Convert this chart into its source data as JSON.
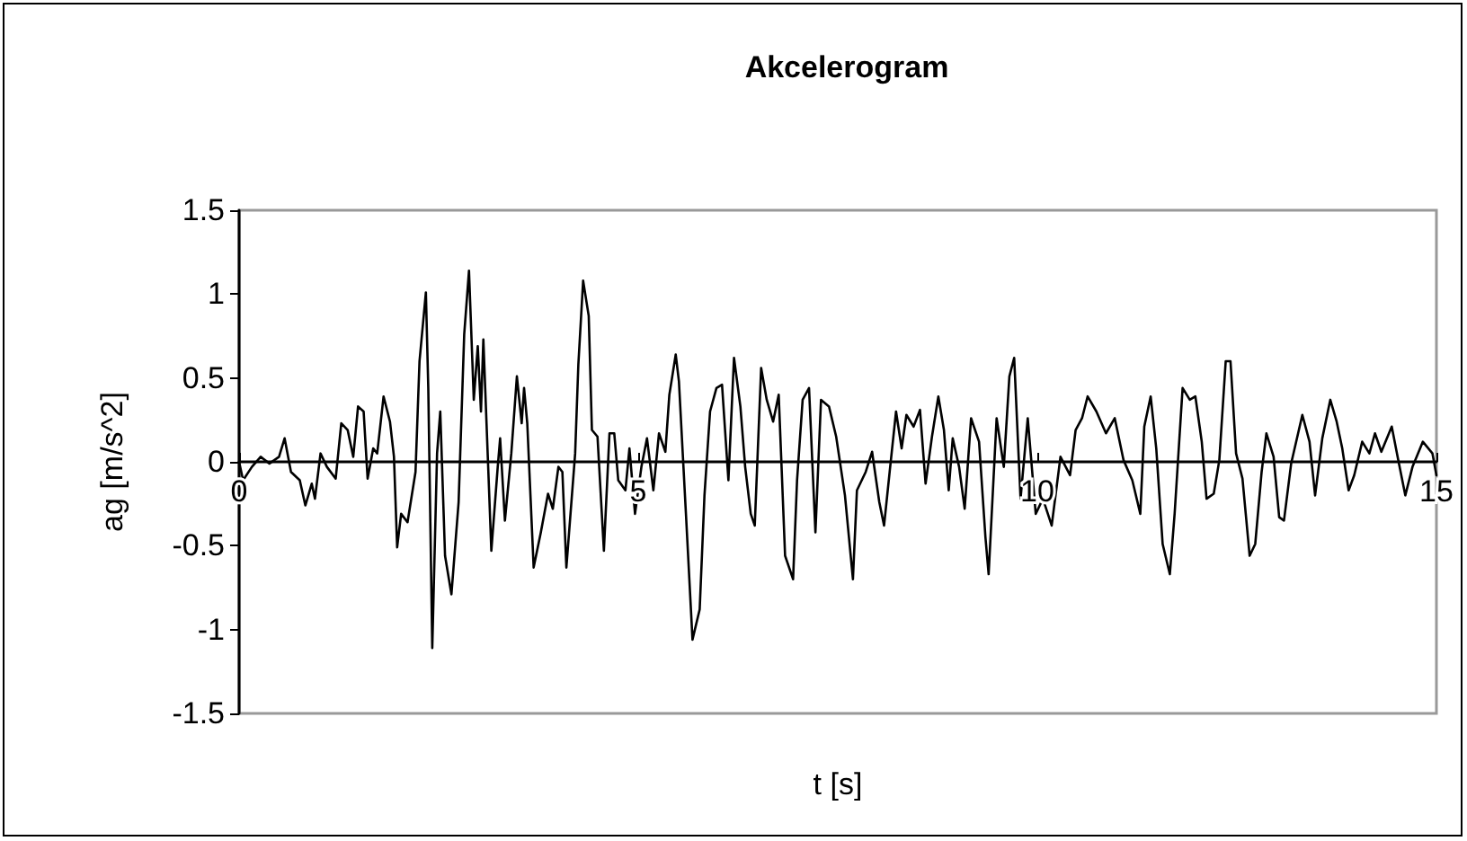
{
  "chart_data": {
    "type": "line",
    "title": "Akcelerogram",
    "xlabel": "t [s]",
    "ylabel": "ag [m/s^2]",
    "xlim": [
      0,
      15
    ],
    "xticks": [
      0,
      5,
      10,
      15
    ],
    "ylim": [
      -1.5,
      1.5
    ],
    "yticks": [
      -1.5,
      -1,
      -0.5,
      0,
      0.5,
      1,
      1.5
    ],
    "grid": false,
    "marker": "none",
    "line_style": "solid",
    "series": [
      {
        "color": "#000000",
        "x": [
          0,
          0.05,
          0.16,
          0.27,
          0.38,
          0.5,
          0.57,
          0.65,
          0.76,
          0.83,
          0.91,
          0.95,
          1.02,
          1.1,
          1.21,
          1.28,
          1.36,
          1.43,
          1.49,
          1.56,
          1.61,
          1.68,
          1.73,
          1.81,
          1.89,
          1.94,
          1.98,
          2.03,
          2.11,
          2.21,
          2.26,
          2.34,
          2.37,
          2.42,
          2.48,
          2.52,
          2.58,
          2.66,
          2.75,
          2.82,
          2.88,
          2.94,
          2.99,
          3.03,
          3.06,
          3.16,
          3.24,
          3.27,
          3.33,
          3.41,
          3.48,
          3.54,
          3.57,
          3.61,
          3.69,
          3.78,
          3.87,
          3.93,
          4.0,
          4.05,
          4.1,
          4.21,
          4.25,
          4.31,
          4.38,
          4.42,
          4.49,
          4.57,
          4.64,
          4.7,
          4.75,
          4.84,
          4.89,
          4.96,
          5.04,
          5.11,
          5.19,
          5.26,
          5.34,
          5.39,
          5.47,
          5.51,
          5.6,
          5.68,
          5.77,
          5.83,
          5.9,
          5.98,
          6.05,
          6.13,
          6.2,
          6.28,
          6.34,
          6.41,
          6.46,
          6.54,
          6.61,
          6.69,
          6.76,
          6.84,
          6.94,
          6.99,
          7.06,
          7.14,
          7.22,
          7.29,
          7.39,
          7.48,
          7.59,
          7.69,
          7.74,
          7.85,
          7.93,
          8.02,
          8.08,
          8.15,
          8.23,
          8.3,
          8.36,
          8.45,
          8.53,
          8.6,
          8.68,
          8.76,
          8.83,
          8.89,
          8.94,
          9.02,
          9.09,
          9.17,
          9.27,
          9.35,
          9.39,
          9.49,
          9.58,
          9.65,
          9.71,
          9.79,
          9.88,
          9.98,
          10.07,
          10.18,
          10.29,
          10.41,
          10.48,
          10.56,
          10.63,
          10.74,
          10.86,
          10.97,
          11.08,
          11.19,
          11.29,
          11.34,
          11.42,
          11.49,
          11.57,
          11.66,
          11.72,
          11.82,
          11.91,
          11.98,
          12.06,
          12.12,
          12.21,
          12.28,
          12.36,
          12.42,
          12.49,
          12.57,
          12.66,
          12.73,
          12.81,
          12.87,
          12.96,
          13.03,
          13.09,
          13.18,
          13.32,
          13.41,
          13.48,
          13.57,
          13.67,
          13.75,
          13.82,
          13.9,
          13.97,
          14.07,
          14.16,
          14.23,
          14.31,
          14.44,
          14.53,
          14.61,
          14.7,
          14.83,
          14.95,
          15.0
        ],
        "values": [
          0,
          -0.11,
          -0.03,
          0.03,
          -0.01,
          0.03,
          0.14,
          -0.06,
          -0.11,
          -0.26,
          -0.13,
          -0.22,
          0.05,
          -0.03,
          -0.1,
          0.23,
          0.19,
          0.03,
          0.33,
          0.3,
          -0.1,
          0.08,
          0.05,
          0.39,
          0.24,
          0.03,
          -0.51,
          -0.31,
          -0.36,
          -0.06,
          0.6,
          1.01,
          0.44,
          -1.11,
          0.05,
          0.3,
          -0.56,
          -0.79,
          -0.24,
          0.76,
          1.14,
          0.37,
          0.69,
          0.3,
          0.73,
          -0.53,
          -0.03,
          0.14,
          -0.35,
          0.05,
          0.51,
          0.23,
          0.44,
          0.23,
          -0.63,
          -0.42,
          -0.19,
          -0.28,
          -0.03,
          -0.06,
          -0.63,
          0.05,
          0.58,
          1.08,
          0.87,
          0.19,
          0.15,
          -0.53,
          0.17,
          0.17,
          -0.11,
          -0.17,
          0.08,
          -0.31,
          -0.03,
          0.14,
          -0.17,
          0.17,
          0.06,
          0.4,
          0.64,
          0.48,
          -0.33,
          -1.06,
          -0.88,
          -0.2,
          0.3,
          0.44,
          0.46,
          -0.11,
          0.62,
          0.33,
          -0.03,
          -0.31,
          -0.38,
          0.56,
          0.37,
          0.24,
          0.4,
          -0.56,
          -0.7,
          -0.11,
          0.37,
          0.44,
          -0.42,
          0.37,
          0.33,
          0.15,
          -0.2,
          -0.7,
          -0.17,
          -0.06,
          0.06,
          -0.24,
          -0.38,
          -0.06,
          0.3,
          0.08,
          0.28,
          0.21,
          0.31,
          -0.13,
          0.15,
          0.39,
          0.19,
          -0.17,
          0.14,
          -0.03,
          -0.28,
          0.26,
          0.12,
          -0.45,
          -0.67,
          0.26,
          -0.03,
          0.51,
          0.62,
          -0.22,
          0.26,
          -0.31,
          -0.22,
          -0.38,
          0.03,
          -0.08,
          0.19,
          0.26,
          0.39,
          0.3,
          0.17,
          0.26,
          0.01,
          -0.11,
          -0.31,
          0.21,
          0.39,
          0.08,
          -0.49,
          -0.67,
          -0.31,
          0.44,
          0.37,
          0.39,
          0.12,
          -0.22,
          -0.19,
          0.01,
          0.6,
          0.6,
          0.05,
          -0.1,
          -0.56,
          -0.49,
          -0.06,
          0.17,
          0.03,
          -0.33,
          -0.35,
          -0.01,
          0.28,
          0.12,
          -0.2,
          0.14,
          0.37,
          0.24,
          0.08,
          -0.17,
          -0.08,
          0.12,
          0.05,
          0.17,
          0.06,
          0.21,
          -0.01,
          -0.2,
          -0.03,
          0.12,
          0.05,
          -0.08
        ]
      }
    ]
  }
}
